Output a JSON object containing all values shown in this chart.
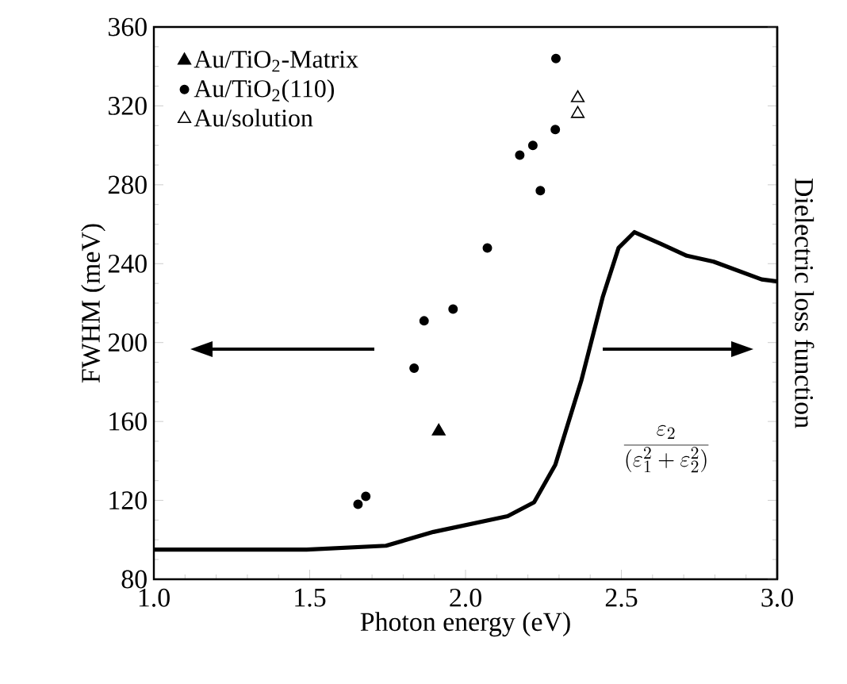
{
  "chart_data": {
    "type": "scatter",
    "xlabel": "Photon energy (eV)",
    "ylabel": "FWHM (meV)",
    "y2label": "Dielectric loss function",
    "xlim": [
      1.0,
      3.0
    ],
    "xticks": [
      {
        "value": 1.0,
        "label": "1.0"
      },
      {
        "value": 1.5,
        "label": "1.5"
      },
      {
        "value": 2.0,
        "label": "2.0"
      },
      {
        "value": 2.5,
        "label": "2.5"
      },
      {
        "value": 3.0,
        "label": "3.0"
      }
    ],
    "ylim": [
      80,
      360
    ],
    "yticks": [
      80,
      120,
      160,
      200,
      240,
      280,
      320,
      360
    ],
    "legend": "top left",
    "series": [
      {
        "name": "Au/TiO$_{2}$-Matrix",
        "type": "scatter",
        "marker": "triangle",
        "color": "#000000",
        "x": [
          1.914
        ],
        "values": [
          155
        ]
      },
      {
        "name": "Au/TiO$_{2}$(110)",
        "type": "scatter",
        "marker": "circle",
        "color": "#000000",
        "x": [
          1.655,
          1.68,
          1.835,
          1.867,
          1.96,
          2.07,
          2.174,
          2.216,
          2.24,
          2.288,
          2.29
        ],
        "values": [
          118,
          122,
          187,
          211,
          217,
          248,
          295,
          300,
          277,
          308,
          344
        ]
      },
      {
        "name": "Au/solution",
        "type": "scatter",
        "marker": "triangle",
        "color": "#ffffff",
        "x": [
          2.36,
          2.36
        ],
        "values": [
          324,
          316
        ]
      },
      {
        "type": "line",
        "color": "#000000",
        "x": [
          1.0,
          1.49,
          1.745,
          1.897,
          2.135,
          2.22,
          2.288,
          2.372,
          2.44,
          2.491,
          2.542,
          2.627,
          2.71,
          2.796,
          2.95,
          3.0
        ],
        "values": [
          95,
          95,
          97,
          104,
          112,
          119,
          138,
          181,
          223,
          248,
          256,
          250,
          244,
          241,
          232,
          231
        ]
      }
    ],
    "annotations": [
      "\\frac{\\varepsilon_2}{(\\varepsilon_1^2+\\varepsilon_2^2)}"
    ]
  }
}
